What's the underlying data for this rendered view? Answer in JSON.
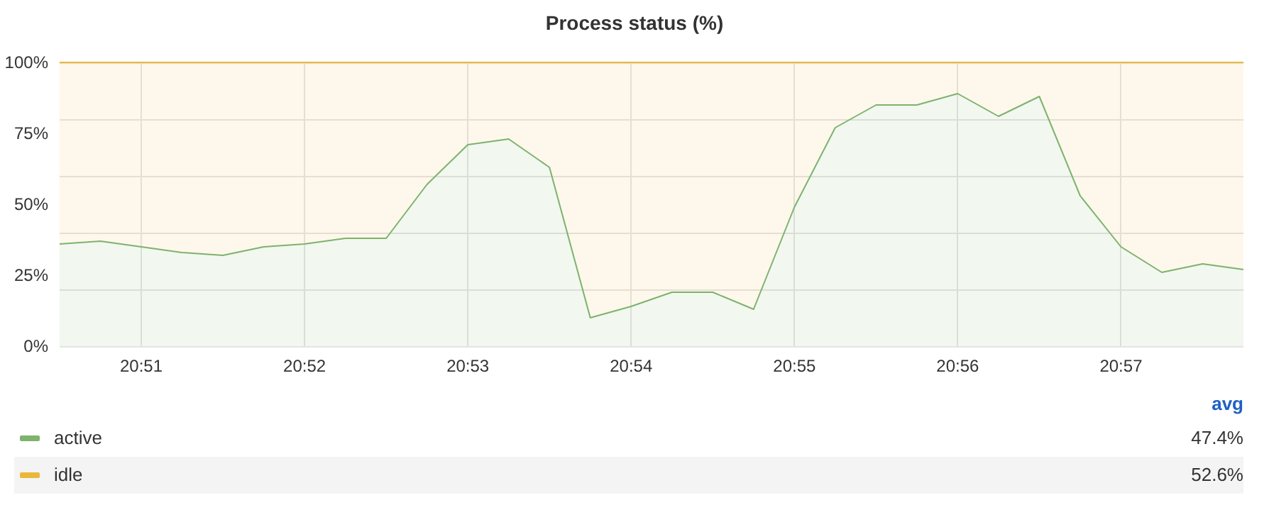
{
  "chart_data": {
    "type": "area",
    "title": "Process status (%)",
    "stacked": true,
    "categories": [
      null,
      null,
      "20:51",
      null,
      null,
      null,
      "20:52",
      null,
      null,
      null,
      "20:53",
      null,
      null,
      null,
      "20:54",
      null,
      null,
      null,
      "20:55",
      null,
      null,
      null,
      "20:56",
      null,
      null,
      null,
      "20:57",
      null,
      null,
      null
    ],
    "series": [
      {
        "name": "active",
        "color": "#7eb26d",
        "values": [
          36,
          37,
          35,
          33,
          32,
          35,
          36,
          38,
          38,
          57,
          71,
          73,
          63,
          10,
          14,
          19,
          19,
          13,
          49,
          77,
          85,
          85,
          89,
          81,
          88,
          53,
          35,
          26,
          29,
          27
        ]
      },
      {
        "name": "idle",
        "color": "#eab839",
        "values": [
          64,
          63,
          65,
          67,
          68,
          65,
          64,
          62,
          62,
          43,
          29,
          27,
          37,
          90,
          86,
          81,
          81,
          87,
          51,
          23,
          15,
          15,
          11,
          19,
          12,
          47,
          65,
          74,
          71,
          73
        ]
      }
    ],
    "ylim": [
      0,
      100
    ],
    "yticks": [
      {
        "value": 0,
        "label": "0%"
      },
      {
        "value": 25,
        "label": "25%"
      },
      {
        "value": 50,
        "label": "50%"
      },
      {
        "value": 75,
        "label": "75%"
      },
      {
        "value": 100,
        "label": "100%"
      }
    ],
    "grid": true,
    "legend": "bottom",
    "marker": "none",
    "line_style": "solid",
    "annotations": [
      "avg",
      "47.4%",
      "52.6%"
    ]
  }
}
